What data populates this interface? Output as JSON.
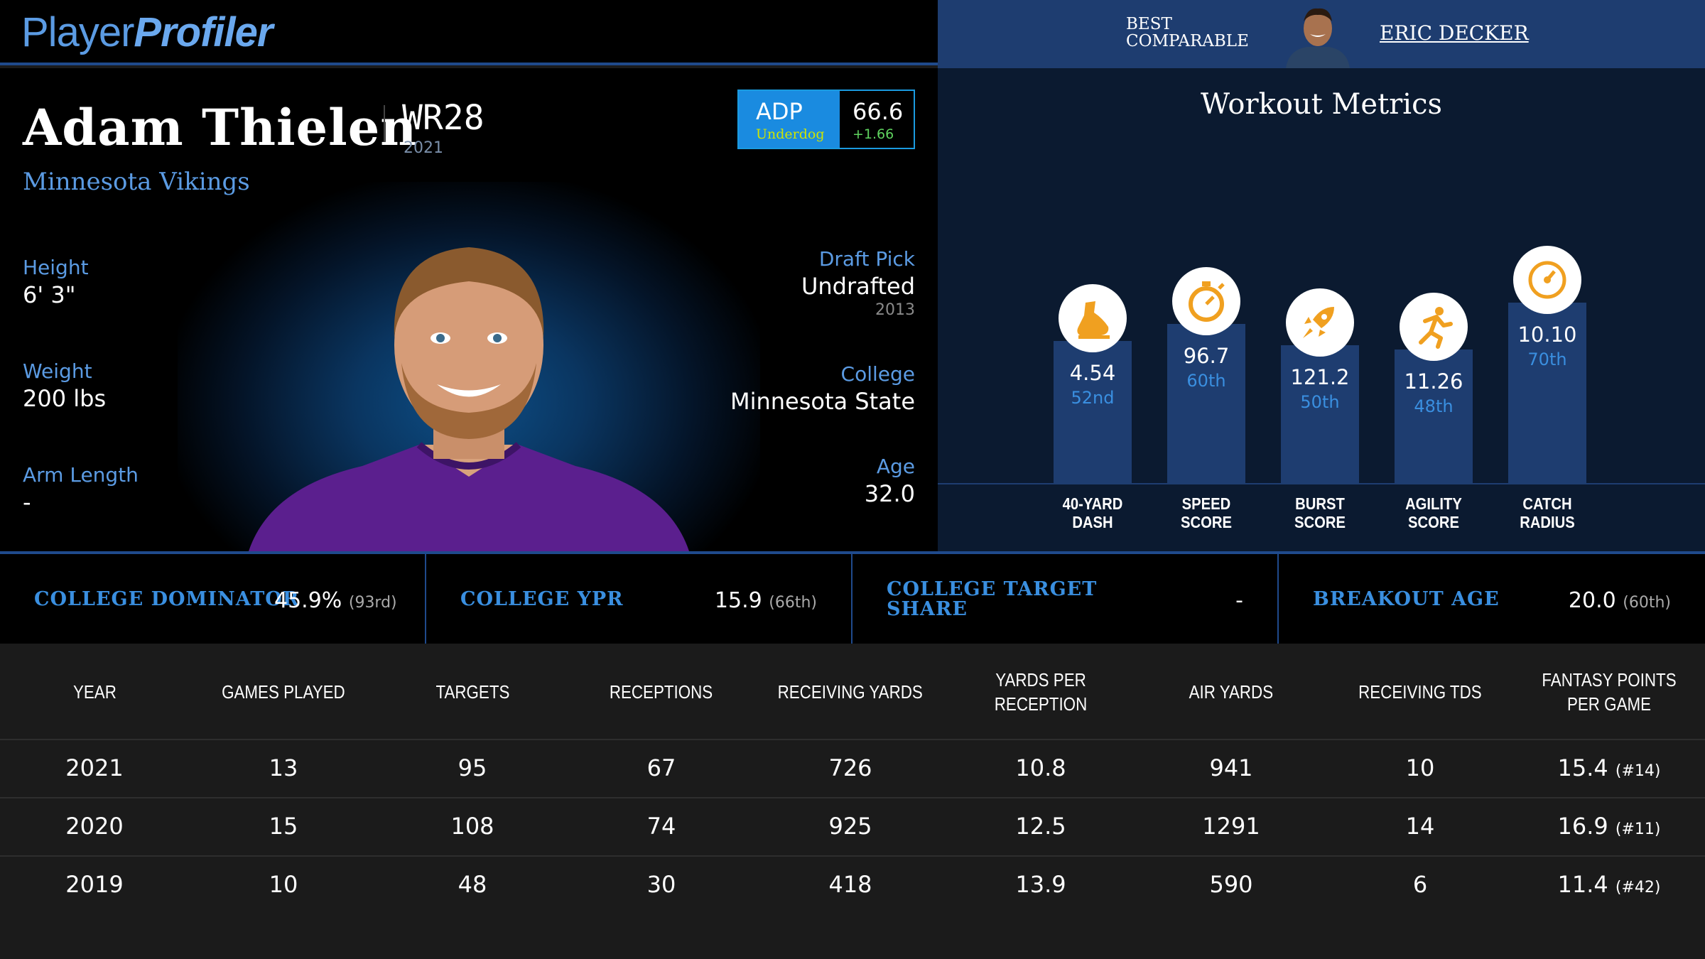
{
  "header": {
    "logo_part1": "Player",
    "logo_part2": "Profiler",
    "comparable_label_line1": "BEST",
    "comparable_label_line2": "COMPARABLE",
    "comparable_name": "ERIC DECKER"
  },
  "player": {
    "name": "Adam Thielen",
    "position": "WR28",
    "season": "2021",
    "team": "Minnesota Vikings",
    "adp": {
      "label": "ADP",
      "source": "Underdog",
      "value": "66.6",
      "change": "+1.66"
    },
    "height_label": "Height",
    "height": "6' 3\"",
    "weight_label": "Weight",
    "weight": "200 lbs",
    "arm_label": "Arm Length",
    "arm": "-",
    "draft_label": "Draft Pick",
    "draft": "Undrafted",
    "draft_year": "2013",
    "college_label": "College",
    "college": "Minnesota State",
    "age_label": "Age",
    "age": "32.0"
  },
  "workout": {
    "title": "Workout Metrics",
    "metrics": [
      {
        "value": "4.54",
        "percentile": "52nd",
        "pct": 52,
        "label1": "40-YARD",
        "label2": "DASH",
        "icon": "shoe-icon"
      },
      {
        "value": "96.7",
        "percentile": "60th",
        "pct": 60,
        "label1": "SPEED",
        "label2": "SCORE",
        "icon": "stopwatch-icon"
      },
      {
        "value": "121.2",
        "percentile": "50th",
        "pct": 50,
        "label1": "BURST",
        "label2": "SCORE",
        "icon": "rocket-icon"
      },
      {
        "value": "11.26",
        "percentile": "48th",
        "pct": 48,
        "label1": "AGILITY",
        "label2": "SCORE",
        "icon": "runner-icon"
      },
      {
        "value": "10.10",
        "percentile": "70th",
        "pct": 70,
        "label1": "CATCH",
        "label2": "RADIUS",
        "icon": "target-icon"
      }
    ]
  },
  "college_stats": [
    {
      "label_line1": "COLLEGE DOMINATOR",
      "label_line2": "",
      "value": "45.9%",
      "rank": "(93rd)"
    },
    {
      "label_line1": "COLLEGE YPR",
      "label_line2": "",
      "value": "15.9",
      "rank": "(66th)"
    },
    {
      "label_line1": "COLLEGE TARGET",
      "label_line2": "SHARE",
      "value": "-",
      "rank": ""
    },
    {
      "label_line1": "BREAKOUT AGE",
      "label_line2": "",
      "value": "20.0",
      "rank": "(60th)"
    }
  ],
  "table": {
    "headers": [
      "YEAR",
      "GAMES PLAYED",
      "TARGETS",
      "RECEPTIONS",
      "RECEIVING YARDS",
      "YARDS PER RECEPTION",
      "AIR YARDS",
      "RECEIVING TDS",
      "FANTASY POINTS PER GAME"
    ],
    "rows": [
      {
        "year": "2021",
        "games": "13",
        "targets": "95",
        "receptions": "67",
        "yards": "726",
        "ypr": "10.8",
        "air": "941",
        "tds": "10",
        "fppg": "15.4",
        "rank": "(#14)"
      },
      {
        "year": "2020",
        "games": "15",
        "targets": "108",
        "receptions": "74",
        "yards": "925",
        "ypr": "12.5",
        "air": "1291",
        "tds": "14",
        "fppg": "16.9",
        "rank": "(#11)"
      },
      {
        "year": "2019",
        "games": "10",
        "targets": "48",
        "receptions": "30",
        "yards": "418",
        "ypr": "13.9",
        "air": "590",
        "tds": "6",
        "fppg": "11.4",
        "rank": "(#42)"
      }
    ]
  },
  "colors": {
    "accent": "#5b9be3",
    "bar": "#1e3d70",
    "icon_orange": "#f0a020",
    "adp_blue": "#1a8be0"
  }
}
